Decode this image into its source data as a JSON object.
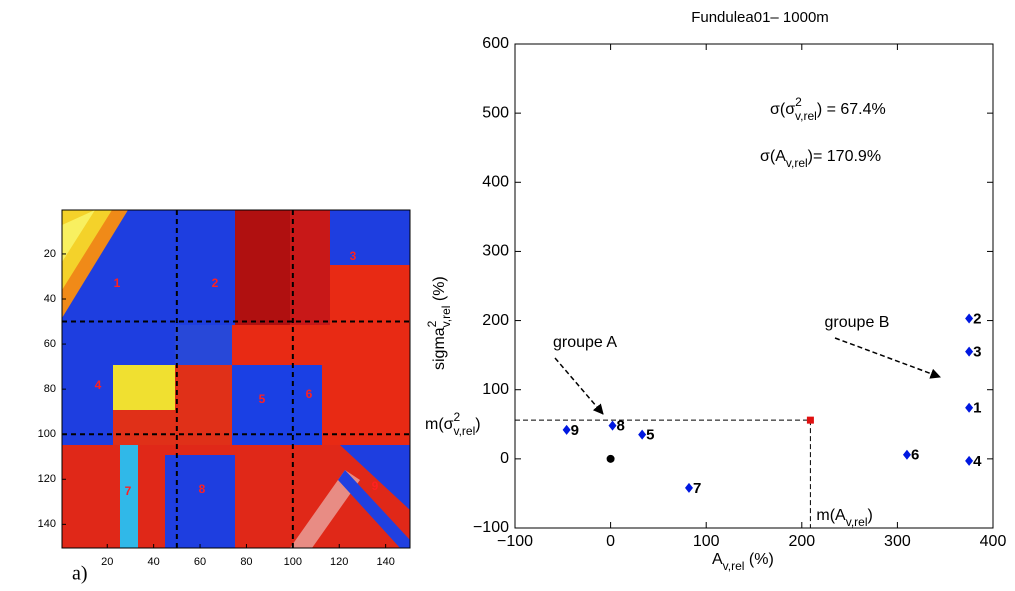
{
  "panel_label": "a)",
  "chart_data": [
    {
      "type": "image",
      "xlim": [
        0.5,
        150.5
      ],
      "ylim": [
        0.5,
        150.5
      ],
      "y_reversed": true,
      "xticks": [
        20,
        40,
        60,
        80,
        100,
        120,
        140
      ],
      "yticks": [
        20,
        40,
        60,
        80,
        100,
        120,
        140
      ],
      "dividers": {
        "x": [
          50,
          100
        ],
        "y": [
          50,
          100
        ]
      },
      "region_labels": [
        "1",
        "2",
        "3",
        "4",
        "5",
        "6",
        "7",
        "8",
        "9"
      ],
      "region_label_color": "#ff2020"
    },
    {
      "type": "scatter",
      "title": "Fundulea01– 1000m",
      "xlim": [
        -100,
        400
      ],
      "ylim": [
        -100,
        600
      ],
      "xticks": [
        {
          "value": -100,
          "label": "−100"
        },
        0,
        100,
        200,
        300,
        400
      ],
      "yticks": [
        {
          "value": -100,
          "label": "−100"
        },
        0,
        100,
        200,
        300,
        400,
        500,
        600
      ],
      "x_label": [
        "A",
        "v,rel",
        " (%)"
      ],
      "y_label": [
        "sigma",
        "2",
        "v,rel",
        " (%)"
      ],
      "series": [
        {
          "color": "#0018e0",
          "labels": [
            "9",
            "8",
            "5",
            "7",
            "6",
            "2",
            "3",
            "1",
            "4"
          ],
          "x": [
            -46,
            2,
            33,
            82,
            310,
            375,
            375,
            375,
            375
          ],
          "values": [
            42,
            48,
            35,
            -42,
            6,
            203,
            155,
            74,
            -3
          ]
        }
      ],
      "origin_point": {
        "x": 0,
        "y": 0,
        "color": "#000000"
      },
      "mean_point": {
        "x": 209,
        "y": 56,
        "color": "#e01010",
        "x_label": [
          "m(A",
          "v,rel",
          ")"
        ],
        "y_label": [
          "m(σ",
          "2",
          "v,rel",
          ")"
        ]
      },
      "annotations": {
        "sigma_var": [
          "σ(σ",
          "2",
          "v,rel",
          ") = 67.4%"
        ],
        "sigma_area": [
          "σ(A",
          "v,rel",
          ")=  170.9%"
        ],
        "group_a": "groupe A",
        "group_b": "groupe B"
      }
    }
  ]
}
